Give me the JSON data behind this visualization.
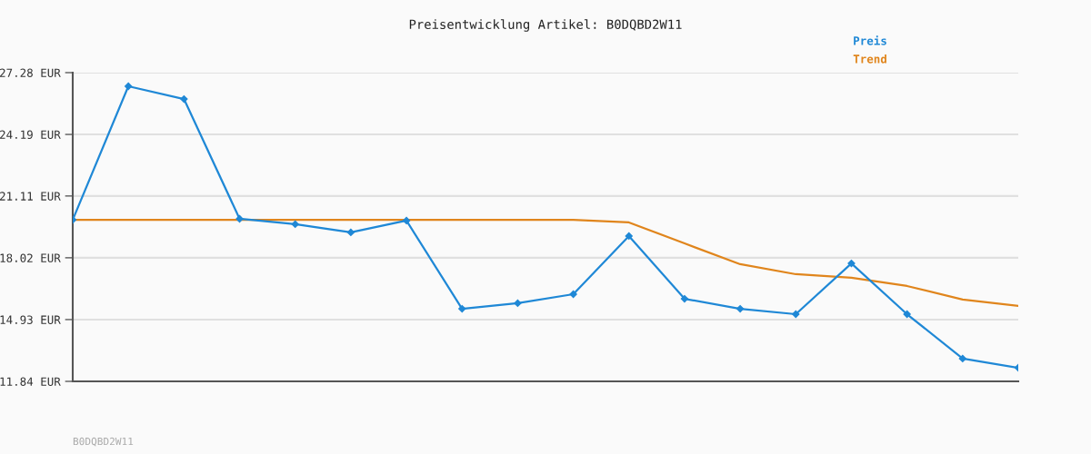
{
  "chart_data": {
    "type": "line",
    "title": "Preisentwicklung Artikel: B0DQBD2W11",
    "categories": [
      null,
      null,
      null,
      null,
      null,
      null,
      null,
      null,
      null,
      null,
      null,
      null,
      null,
      null,
      null,
      null,
      null,
      null
    ],
    "series": [
      {
        "name": "Preis",
        "color": "#1f88d6",
        "marker": "diamond",
        "values": [
          19.92,
          26.6,
          25.96,
          19.97,
          19.7,
          19.29,
          19.88,
          15.47,
          15.75,
          16.2,
          19.11,
          15.97,
          15.47,
          15.2,
          17.74,
          15.2,
          12.98,
          12.52
        ]
      },
      {
        "name": "Trend",
        "color": "#e0851c",
        "marker": "none",
        "values": [
          19.92,
          19.92,
          19.92,
          19.92,
          19.92,
          19.92,
          19.92,
          19.92,
          19.92,
          19.92,
          19.79,
          18.74,
          17.7,
          17.2,
          17.02,
          16.61,
          15.93,
          15.61
        ]
      }
    ],
    "ylim": [
      11.84,
      27.28
    ],
    "yticks": [
      {
        "value": 11.84,
        "label": "11.84 EUR"
      },
      {
        "value": 14.93,
        "label": "14.93 EUR"
      },
      {
        "value": 18.02,
        "label": "18.02 EUR"
      },
      {
        "value": 21.11,
        "label": "21.11 EUR"
      },
      {
        "value": 24.19,
        "label": "24.19 EUR"
      },
      {
        "value": 27.28,
        "label": "27.28 EUR"
      }
    ],
    "grid": "y",
    "legend": "top right",
    "line_style": "solid",
    "annotations": [
      "B0DQBD2W11"
    ]
  }
}
